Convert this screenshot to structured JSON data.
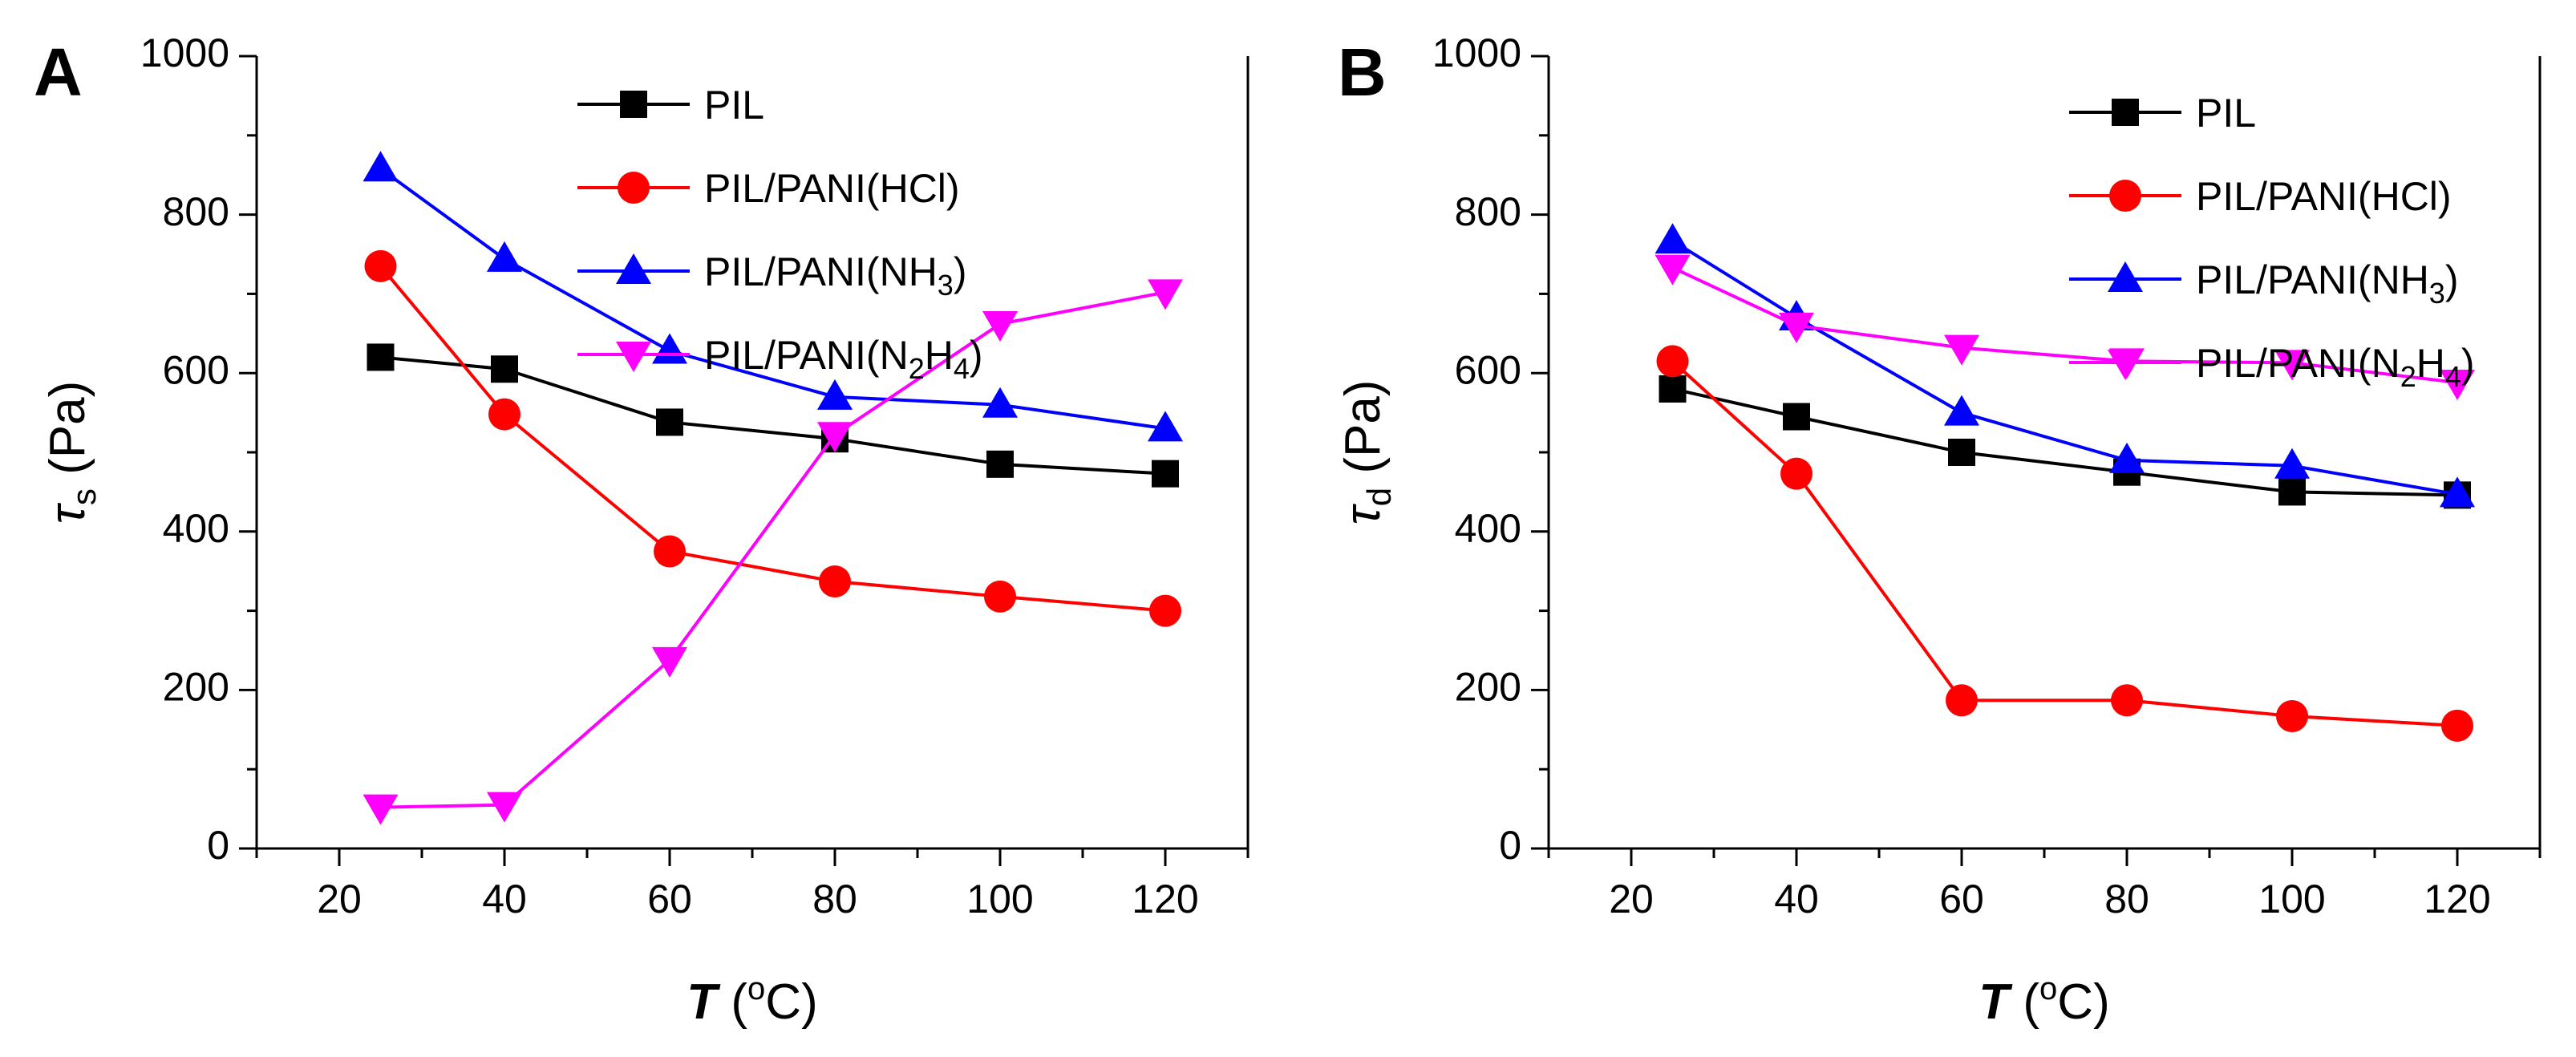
{
  "figure": {
    "panels": [
      "A",
      "B"
    ]
  },
  "chart_data": [
    {
      "type": "line",
      "panel_label": "A",
      "xlabel": "T",
      "xlabel_unit": "(oC)",
      "ylabel_symbol": "τ",
      "ylabel_subscript": "s",
      "ylabel_unit": "(Pa)",
      "xlim": [
        10,
        130
      ],
      "ylim": [
        0,
        1000
      ],
      "xticks": [
        20,
        40,
        60,
        80,
        100,
        120
      ],
      "yticks": [
        0,
        200,
        400,
        600,
        800,
        1000
      ],
      "legend_position": "top-center",
      "series": [
        {
          "name": "PIL",
          "label_parts": [
            [
              "PIL",
              ""
            ]
          ],
          "color": "#000000",
          "marker": "square",
          "x": [
            25,
            40,
            60,
            80,
            100,
            120
          ],
          "y": [
            620,
            605,
            538,
            517,
            485,
            473
          ]
        },
        {
          "name": "PIL/PANI(HCl)",
          "label_parts": [
            [
              "PIL/PANI(HCl)",
              ""
            ]
          ],
          "color": "#ff0000",
          "marker": "circle",
          "x": [
            25,
            40,
            60,
            80,
            100,
            120
          ],
          "y": [
            735,
            548,
            375,
            337,
            318,
            300
          ]
        },
        {
          "name": "PIL/PANI(NH3)",
          "label_parts": [
            [
              "PIL/PANI(NH",
              ""
            ],
            [
              "3",
              "sub"
            ],
            [
              ")",
              ""
            ]
          ],
          "color": "#0000ff",
          "marker": "triangle-up",
          "x": [
            25,
            40,
            60,
            80,
            100,
            120
          ],
          "y": [
            858,
            744,
            628,
            570,
            560,
            530
          ]
        },
        {
          "name": "PIL/PANI(N2H4)",
          "label_parts": [
            [
              "PIL/PANI(N",
              ""
            ],
            [
              "2",
              "sub"
            ],
            [
              "H",
              ""
            ],
            [
              "4",
              "sub"
            ],
            [
              ")",
              ""
            ]
          ],
          "color": "#ff00ff",
          "marker": "triangle-down",
          "x": [
            25,
            40,
            60,
            80,
            100,
            120
          ],
          "y": [
            52,
            55,
            238,
            522,
            662,
            702
          ]
        }
      ]
    },
    {
      "type": "line",
      "panel_label": "B",
      "xlabel": "T",
      "xlabel_unit": "(oC)",
      "ylabel_symbol": "τ",
      "ylabel_subscript": "d",
      "ylabel_unit": "(Pa)",
      "xlim": [
        10,
        130
      ],
      "ylim": [
        0,
        1000
      ],
      "xticks": [
        20,
        40,
        60,
        80,
        100,
        120
      ],
      "yticks": [
        0,
        200,
        400,
        600,
        800,
        1000
      ],
      "legend_position": "top-right",
      "series": [
        {
          "name": "PIL",
          "label_parts": [
            [
              "PIL",
              ""
            ]
          ],
          "color": "#000000",
          "marker": "square",
          "x": [
            25,
            40,
            60,
            80,
            100,
            120
          ],
          "y": [
            580,
            545,
            500,
            475,
            450,
            446
          ]
        },
        {
          "name": "PIL/PANI(HCl)",
          "label_parts": [
            [
              "PIL/PANI(HCl)",
              ""
            ]
          ],
          "color": "#ff0000",
          "marker": "circle",
          "x": [
            25,
            40,
            60,
            80,
            100,
            120
          ],
          "y": [
            615,
            473,
            187,
            187,
            167,
            155
          ]
        },
        {
          "name": "PIL/PANI(NH3)",
          "label_parts": [
            [
              "PIL/PANI(NH",
              ""
            ],
            [
              "3",
              "sub"
            ],
            [
              ")",
              ""
            ]
          ],
          "color": "#0000ff",
          "marker": "triangle-up",
          "x": [
            25,
            40,
            60,
            80,
            100,
            120
          ],
          "y": [
            767,
            670,
            550,
            490,
            483,
            447
          ]
        },
        {
          "name": "PIL/PANI(N2H4)",
          "label_parts": [
            [
              "PIL/PANI(N",
              ""
            ],
            [
              "2",
              "sub"
            ],
            [
              "H",
              ""
            ],
            [
              "4",
              "sub"
            ],
            [
              ")",
              ""
            ]
          ],
          "color": "#ff00ff",
          "marker": "triangle-down",
          "x": [
            25,
            40,
            60,
            80,
            100,
            120
          ],
          "y": [
            733,
            660,
            632,
            615,
            613,
            588
          ]
        }
      ]
    }
  ]
}
